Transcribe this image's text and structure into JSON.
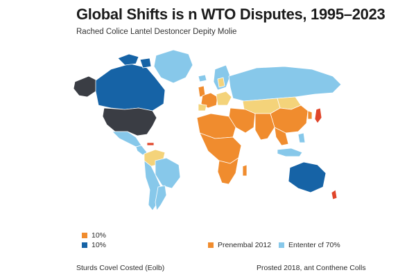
{
  "title": "Global Shifts is n WTO Disputes, 1995–2023",
  "subtitle": "Rached Colice Lantel Destoncer Depity Molie",
  "legend": [
    {
      "label": "10%",
      "color": "#f08c2e"
    },
    {
      "label": "10%",
      "color": "#1663a6"
    },
    {
      "label": "Prenembal 2012",
      "color": "#f08c2e"
    },
    {
      "label": "Ententer cf 70%",
      "color": "#87c8ea"
    }
  ],
  "colors": {
    "dark": "#3a3d44",
    "navy": "#1663a6",
    "light_blue": "#87c8ea",
    "orange": "#f08c2e",
    "yellow": "#f4d37a",
    "red": "#e0452a"
  },
  "footer": {
    "left": "Sturds Covel Costed (Eolb)",
    "right": "Prosted 2018, ant Conthene Colls"
  }
}
